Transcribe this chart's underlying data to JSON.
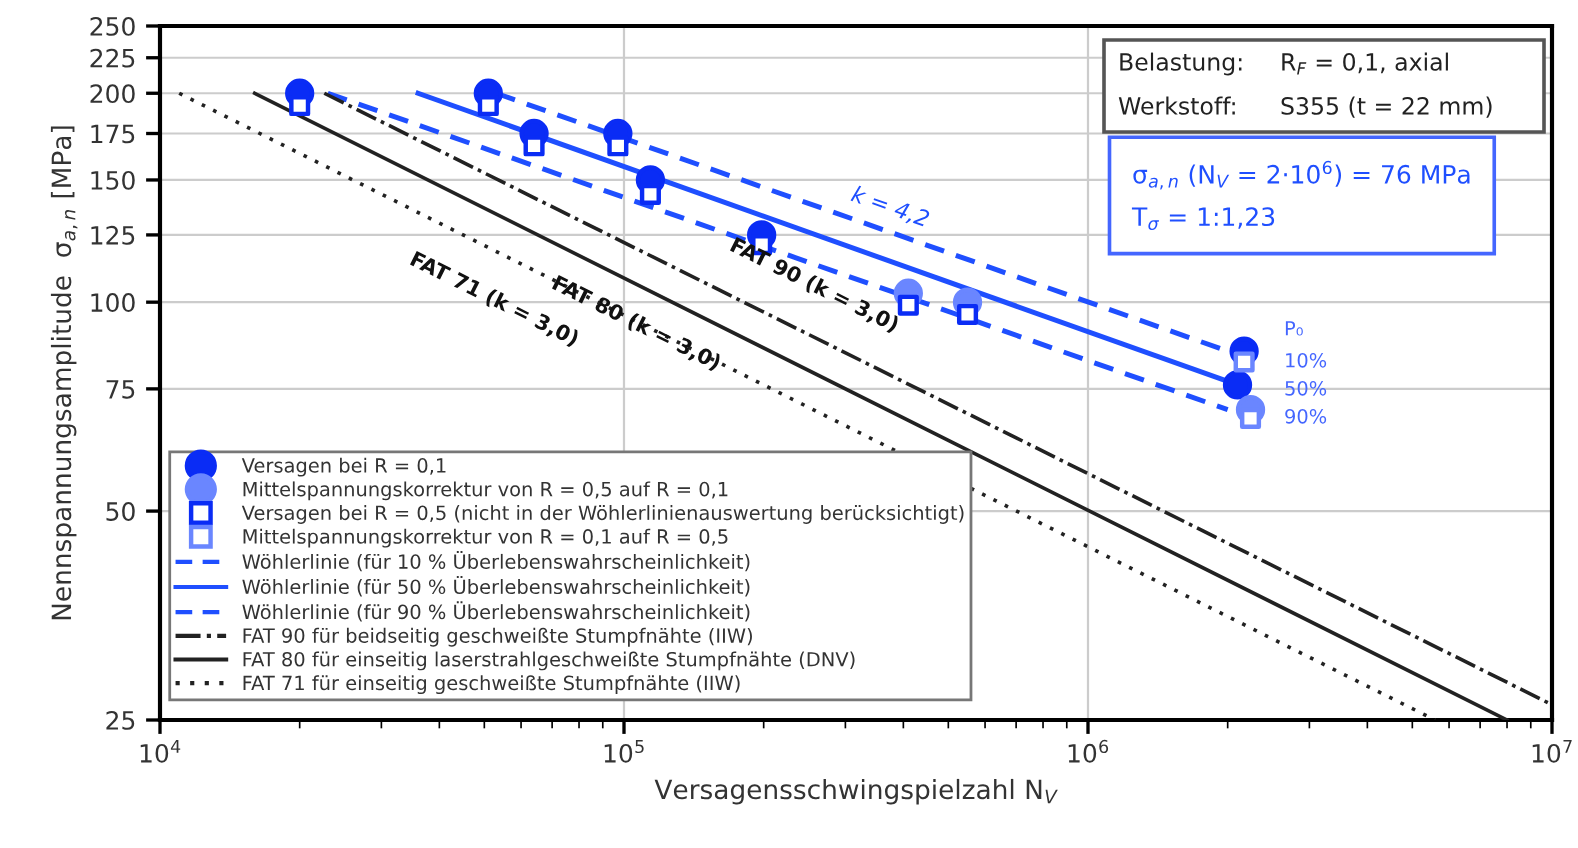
{
  "chart_data": {
    "type": "scatter",
    "xlabel": "Versagensschwingspielzahl N$_{V}$",
    "ylabel": "Nennspannungsamplitude  σ$_{a,n}$ [MPa]",
    "log": "xy",
    "grid": true,
    "legend": "bottom left",
    "xlim": [
      10000,
      10000000
    ],
    "xticks": [
      {
        "value": 10000,
        "label": "10$^{4}$"
      },
      {
        "value": 100000,
        "label": "10$^{5}$"
      },
      {
        "value": 1000000,
        "label": "10$^{6}$"
      },
      {
        "value": 10000000,
        "label": "10$^{7}$"
      }
    ],
    "ylim": [
      25,
      250
    ],
    "yticks": [
      25,
      50,
      75,
      100,
      125,
      150,
      175,
      200,
      225,
      250
    ],
    "series": [
      {
        "name": "Versagen bei R = 0,1",
        "marker": "circle",
        "color": "#0a2cf5",
        "x": [
          20000,
          51000,
          64000,
          97000,
          114000,
          198000,
          2170000,
          2100000
        ],
        "values": [
          200,
          200,
          175,
          175,
          150,
          125,
          85,
          76
        ]
      },
      {
        "name": "Mittelspannungskorrektur von R = 0,5 auf R = 0,1",
        "marker": "circle",
        "color": "#6a86ff",
        "x": [
          410000,
          550000,
          2240000
        ],
        "values": [
          103,
          100,
          70
        ]
      },
      {
        "name": "Versagen bei R = 0,5 (nicht in der Wöhlerlinienauswertung berücksichtigt)",
        "marker": "square",
        "color": "#0a2cf5",
        "x": [
          20000,
          51000,
          64000,
          97000,
          114000,
          198000,
          410000,
          550000
        ],
        "values": [
          192,
          192,
          168,
          168,
          143,
          121,
          99,
          96
        ]
      },
      {
        "name": "Mittelspannungskorrektur von R = 0,1 auf R = 0,5",
        "marker": "square",
        "color": "#6a86ff",
        "x": [
          2170000,
          2240000
        ],
        "values": [
          82,
          68
        ]
      },
      {
        "name": "Wöhlerlinie (für 10 % Überlebenswahrscheinlichkeit)",
        "type": "line",
        "line_style": "dashed",
        "color": "#1f4fff",
        "x": [
          53000,
          2000000
        ],
        "values": [
          200,
          85
        ]
      },
      {
        "name": "Wöhlerlinie (für 50 % Überlebenswahrscheinlichkeit)",
        "type": "line",
        "line_style": "solid",
        "color": "#1f4fff",
        "x": [
          36000,
          2100000
        ],
        "values": [
          200,
          76
        ]
      },
      {
        "name": "Wöhlerlinie (für 90 % Überlebenswahrscheinlichkeit)",
        "type": "line",
        "line_style": "dashed",
        "color": "#1f4fff",
        "x": [
          23000,
          2000000
        ],
        "values": [
          200,
          70
        ]
      },
      {
        "name": "FAT 90 für beidseitig geschweißte Stumpfnähte (IIW)",
        "type": "line",
        "line_style": "dashdot",
        "color": "#222222",
        "x": [
          22600,
          10000000
        ],
        "values": [
          200,
          26.3
        ]
      },
      {
        "name": "FAT 80 für einseitig laserstrahlgeschweißte Stumpfnähte (DNV)",
        "type": "line",
        "line_style": "solid",
        "color": "#222222",
        "x": [
          16000,
          8000000
        ],
        "values": [
          200,
          25
        ]
      },
      {
        "name": "FAT 71 für einseitig geschweißte Stumpfnähte (IIW)",
        "type": "line",
        "line_style": "dotted",
        "color": "#222222",
        "x": [
          11000,
          5600000
        ],
        "values": [
          200,
          25
        ]
      }
    ],
    "annotations": [
      "FAT 71 (k = 3,0)",
      "FAT 80 (k = 3,0)",
      "FAT 90 (k = 3,0)",
      "k = 4,2",
      "P₀",
      "10%",
      "50%",
      "90%",
      "Belastung:",
      "R$_{F}$ = 0,1, axial",
      "Werkstoff:",
      "S355 (t = 22 mm)",
      "σ$_{a,n}$ (N$_{V}$ = 2·10$^{6}$) = 76 MPa",
      "T$_{σ}$ = 1:1,23"
    ]
  }
}
